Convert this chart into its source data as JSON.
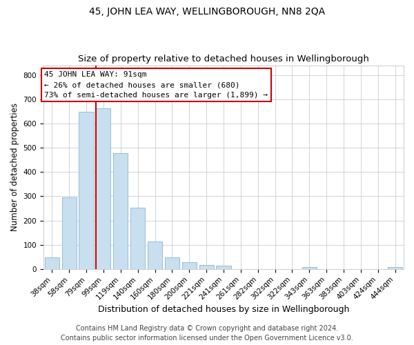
{
  "title": "45, JOHN LEA WAY, WELLINGBOROUGH, NN8 2QA",
  "subtitle": "Size of property relative to detached houses in Wellingborough",
  "xlabel": "Distribution of detached houses by size in Wellingborough",
  "ylabel": "Number of detached properties",
  "bar_labels": [
    "38sqm",
    "58sqm",
    "79sqm",
    "99sqm",
    "119sqm",
    "140sqm",
    "160sqm",
    "180sqm",
    "200sqm",
    "221sqm",
    "241sqm",
    "261sqm",
    "282sqm",
    "302sqm",
    "322sqm",
    "343sqm",
    "363sqm",
    "383sqm",
    "403sqm",
    "424sqm",
    "444sqm"
  ],
  "bar_heights": [
    47,
    295,
    648,
    661,
    478,
    253,
    113,
    49,
    29,
    16,
    13,
    0,
    0,
    0,
    0,
    8,
    0,
    0,
    0,
    0,
    7
  ],
  "bar_color": "#c8dff0",
  "bar_edge_color": "#8ab4d4",
  "marker_line_color": "#cc0000",
  "marker_label": "45 JOHN LEA WAY: 91sqm",
  "annotation_line2": "← 26% of detached houses are smaller (680)",
  "annotation_line3": "73% of semi-detached houses are larger (1,899) →",
  "box_facecolor": "white",
  "box_edgecolor": "#cc0000",
  "ylim": [
    0,
    840
  ],
  "yticks": [
    0,
    100,
    200,
    300,
    400,
    500,
    600,
    700,
    800
  ],
  "grid_color": "#cccccc",
  "footer_line1": "Contains HM Land Registry data © Crown copyright and database right 2024.",
  "footer_line2": "Contains public sector information licensed under the Open Government Licence v3.0.",
  "background_color": "#ffffff",
  "title_fontsize": 10,
  "subtitle_fontsize": 9.5,
  "xlabel_fontsize": 9,
  "ylabel_fontsize": 8.5,
  "tick_fontsize": 7.5,
  "annotation_fontsize": 8,
  "footer_fontsize": 7
}
